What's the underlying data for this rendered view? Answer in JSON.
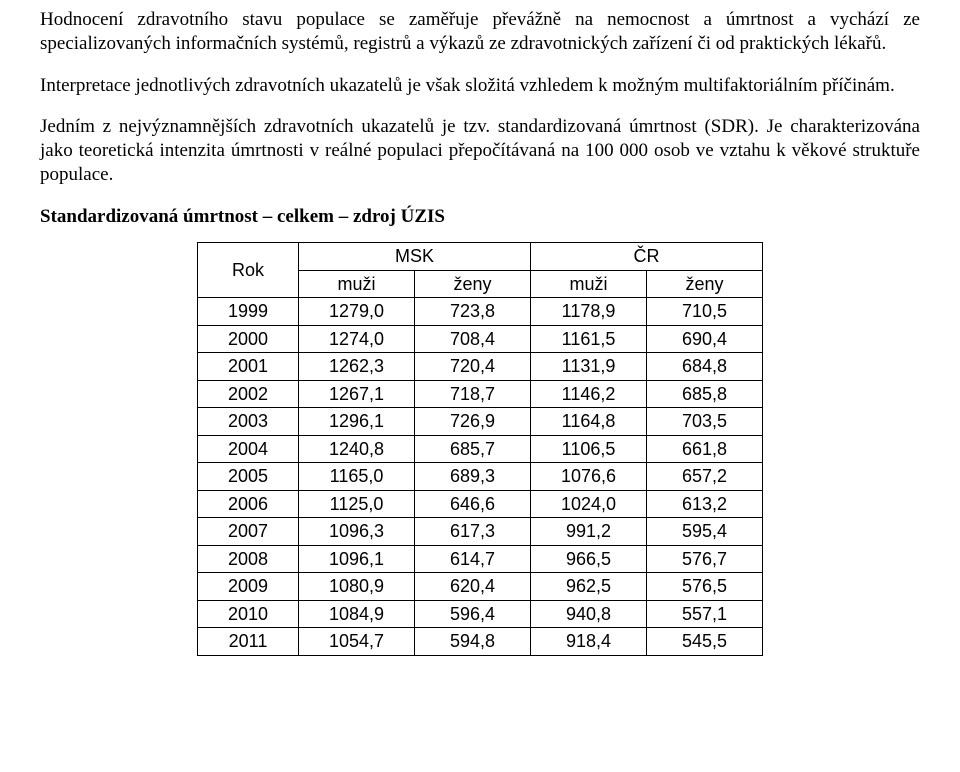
{
  "paragraphs": {
    "p1": "Hodnocení zdravotního stavu populace se zaměřuje převážně na nemocnost a úmrtnost a vychází ze specializovaných informačních systémů, registrů a výkazů ze zdravotnických zařízení či od praktických lékařů.",
    "p2": "Interpretace jednotlivých zdravotních ukazatelů je však složitá vzhledem k možným multifaktoriálním příčinám.",
    "p3": "Jedním z nejvýznamnějších zdravotních ukazatelů je tzv. standardizovaná úmrtnost (SDR). Je charakterizována jako teoretická intenzita úmrtnosti v reálné populaci přepočítávaná na 100 000 osob ve vztahu k věkové struktuře populace.",
    "heading": "Standardizovaná úmrtnost – celkem – zdroj ÚZIS"
  },
  "table": {
    "header": {
      "rok": "Rok",
      "msk": "MSK",
      "cr": "ČR",
      "muzi": "muži",
      "zeny": "ženy"
    },
    "rows": [
      {
        "year": "1999",
        "msk_m": "1279,0",
        "msk_z": "723,8",
        "cr_m": "1178,9",
        "cr_z": "710,5"
      },
      {
        "year": "2000",
        "msk_m": "1274,0",
        "msk_z": "708,4",
        "cr_m": "1161,5",
        "cr_z": "690,4"
      },
      {
        "year": "2001",
        "msk_m": "1262,3",
        "msk_z": "720,4",
        "cr_m": "1131,9",
        "cr_z": "684,8"
      },
      {
        "year": "2002",
        "msk_m": "1267,1",
        "msk_z": "718,7",
        "cr_m": "1146,2",
        "cr_z": "685,8"
      },
      {
        "year": "2003",
        "msk_m": "1296,1",
        "msk_z": "726,9",
        "cr_m": "1164,8",
        "cr_z": "703,5"
      },
      {
        "year": "2004",
        "msk_m": "1240,8",
        "msk_z": "685,7",
        "cr_m": "1106,5",
        "cr_z": "661,8"
      },
      {
        "year": "2005",
        "msk_m": "1165,0",
        "msk_z": "689,3",
        "cr_m": "1076,6",
        "cr_z": "657,2"
      },
      {
        "year": "2006",
        "msk_m": "1125,0",
        "msk_z": "646,6",
        "cr_m": "1024,0",
        "cr_z": "613,2"
      },
      {
        "year": "2007",
        "msk_m": "1096,3",
        "msk_z": "617,3",
        "cr_m": "991,2",
        "cr_z": "595,4"
      },
      {
        "year": "2008",
        "msk_m": "1096,1",
        "msk_z": "614,7",
        "cr_m": "966,5",
        "cr_z": "576,7"
      },
      {
        "year": "2009",
        "msk_m": "1080,9",
        "msk_z": "620,4",
        "cr_m": "962,5",
        "cr_z": "576,5"
      },
      {
        "year": "2010",
        "msk_m": "1084,9",
        "msk_z": "596,4",
        "cr_m": "940,8",
        "cr_z": "557,1"
      },
      {
        "year": "2011",
        "msk_m": "1054,7",
        "msk_z": "594,8",
        "cr_m": "918,4",
        "cr_z": "545,5"
      }
    ]
  }
}
